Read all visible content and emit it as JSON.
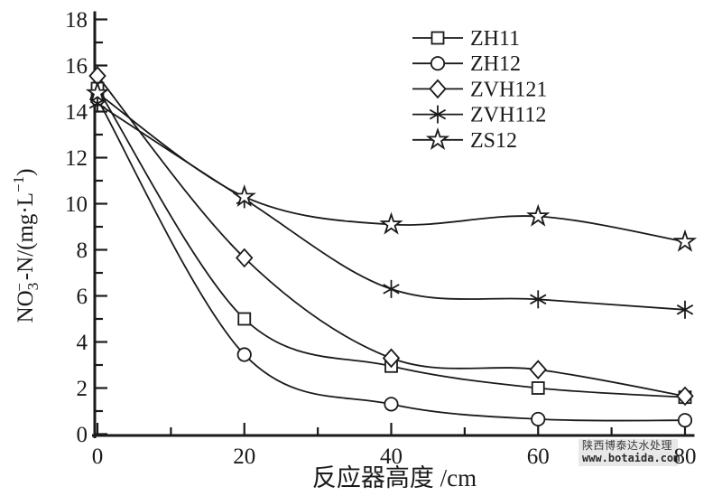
{
  "watermark": {
    "line1": "陕西博泰达水处理",
    "line2": "www.botaida.com"
  },
  "chart_data": {
    "type": "line",
    "title": "",
    "xlabel": "反应器高度 /cm",
    "ylabel": {
      "base": "NO",
      "sub": "3",
      "sup": "−",
      "mid": "-N/(mg·L",
      "sup2": "−1",
      "end": ")"
    },
    "x": [
      0,
      20,
      40,
      60,
      80
    ],
    "series": [
      {
        "name": "ZH11",
        "marker": "square",
        "values": [
          15.0,
          5.0,
          2.95,
          2.0,
          1.6
        ]
      },
      {
        "name": "ZH12",
        "marker": "circle",
        "values": [
          14.55,
          3.45,
          1.3,
          0.65,
          0.6
        ]
      },
      {
        "name": "ZVH121",
        "marker": "diamond",
        "values": [
          15.55,
          7.65,
          3.3,
          2.8,
          1.65
        ]
      },
      {
        "name": "ZVH112",
        "marker": "asterisk",
        "values": [
          14.35,
          10.2,
          6.3,
          5.85,
          5.4
        ]
      },
      {
        "name": "ZS12",
        "marker": "star",
        "values": [
          14.8,
          10.3,
          9.1,
          9.45,
          8.35
        ]
      }
    ],
    "xlim": [
      0,
      80
    ],
    "ylim": [
      0,
      18
    ],
    "x_major_ticks": [
      0,
      20,
      40,
      60,
      80
    ],
    "x_minor_ticks": [
      10,
      30,
      50,
      70
    ],
    "y_major_ticks": [
      0,
      2,
      4,
      6,
      8,
      10,
      12,
      14,
      16,
      18
    ],
    "y_minor_ticks": [
      1,
      3,
      5,
      7,
      9,
      11,
      13,
      15,
      17
    ],
    "legend_position": "top-right",
    "grid": false,
    "line_color": "#1a1a1a",
    "marker_fill": "#ffffff"
  }
}
